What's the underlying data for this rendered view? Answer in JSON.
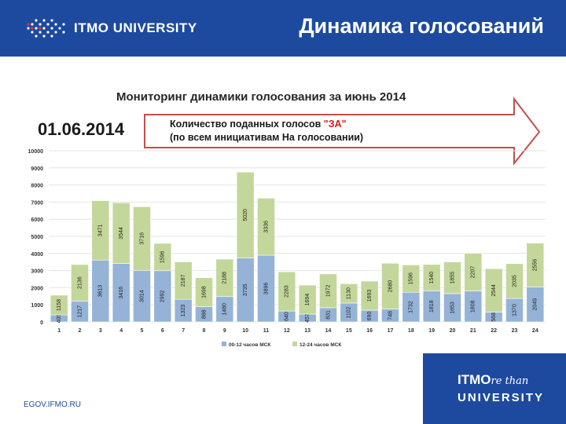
{
  "header": {
    "logo_text": "ITMO UNIVERSITY",
    "title": "Динамика голосований",
    "background": "#1d4a9e"
  },
  "chart_title": "Мониторинг динамики голосования за июнь 2014",
  "date": "01.06.2014",
  "arrow": {
    "line1_prefix": "Количество поданных голосов ",
    "line1_highlight": "\"ЗА\"",
    "line2": "(по всем инициативам На голосовании)"
  },
  "footer": {
    "url": "EGOV.IFMO.RU",
    "brand_line1": "ITMO",
    "brand_line1_script": "re than",
    "brand_line2": "UNIVERSITY"
  },
  "chart_data": {
    "type": "bar",
    "stacked": true,
    "categories": [
      "1",
      "2",
      "3",
      "4",
      "5",
      "6",
      "7",
      "8",
      "9",
      "10",
      "11",
      "12",
      "13",
      "14",
      "15",
      "16",
      "17",
      "18",
      "19",
      "20",
      "21",
      "22",
      "23",
      "24"
    ],
    "series": [
      {
        "name": "00-12 часов МСК",
        "color": "#95b3d7",
        "values": [
          405,
          1217,
          3613,
          3416,
          3014,
          2992,
          1323,
          888,
          1480,
          3735,
          3896,
          640,
          457,
          831,
          1102,
          690,
          748,
          1732,
          1818,
          1653,
          1808,
          568,
          1370,
          2049
        ],
        "labels": [
          "405",
          "1217",
          "3613",
          "3416",
          "3014",
          "2992",
          "1323",
          "888",
          "1480",
          "3735",
          "3896",
          "640",
          "457",
          "831",
          "1102",
          "690",
          "748",
          "1732",
          "1818",
          "1653",
          "1808",
          "568",
          "1370",
          "2049"
        ]
      },
      {
        "name": "12-24 часов МСК",
        "color": "#c4d79b",
        "values": [
          1158,
          2136,
          3471,
          3544,
          3716,
          1596,
          2187,
          1698,
          2188,
          5020,
          3336,
          2283,
          1694,
          1972,
          1130,
          1693,
          2680,
          1596,
          1540,
          1855,
          2207,
          2544,
          2035,
          2556
        ],
        "labels": [
          "1158",
          "2136",
          "3471",
          "3544",
          "3716",
          "1596",
          "2187",
          "1698",
          "2188",
          "5020",
          "3336",
          "2283",
          "1694",
          "1972",
          "1130",
          "1693",
          "2680",
          "1596",
          "1540",
          "1855",
          "2207",
          "2544",
          "2035",
          "2556"
        ]
      }
    ],
    "y_ticks": [
      "0",
      "1000",
      "2000",
      "3000",
      "4000",
      "5000",
      "6000",
      "7000",
      "8000",
      "9000",
      "10000"
    ],
    "ylim": [
      0,
      10000
    ],
    "legend_position": "bottom"
  }
}
